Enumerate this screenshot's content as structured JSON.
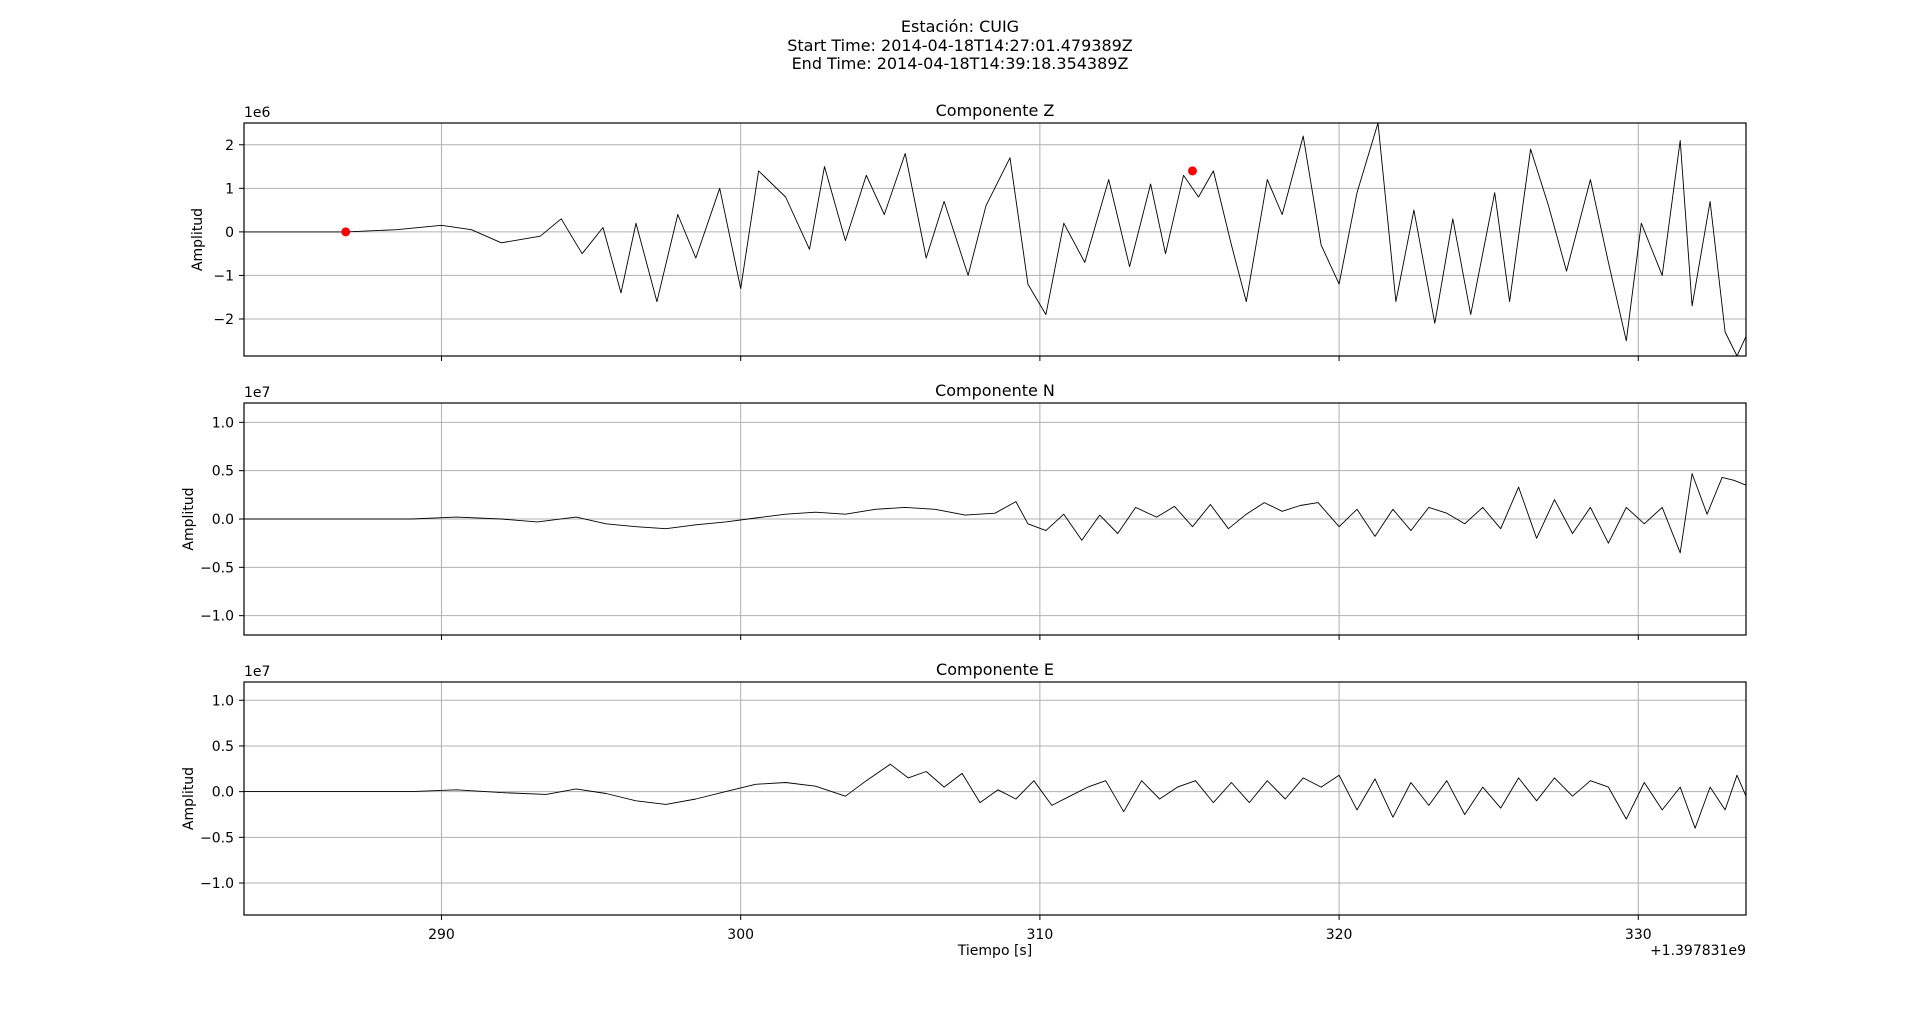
{
  "header": {
    "station": "Estación: CUIG",
    "start_time": "Start Time: 2014-04-18T14:27:01.479389Z",
    "end_time": "End Time: 2014-04-18T14:39:18.354389Z"
  },
  "colors": {
    "trace": "#000000",
    "grid": "#b0b0b0",
    "marker": "#ff0000"
  },
  "chart_data": [
    {
      "type": "line",
      "title": "Componente Z",
      "xlabel": "",
      "ylabel": "Amplitud",
      "scale_label": "1e6",
      "scale": 1000000,
      "xlim": [
        283.4,
        333.6
      ],
      "ylim": [
        -2.85,
        2.5
      ],
      "yticks": [
        2,
        1,
        0,
        -1,
        -2
      ],
      "ytick_labels": [
        "2",
        "1",
        "0",
        "−1",
        "−2"
      ],
      "xticks": [
        290,
        300,
        310,
        320,
        330
      ],
      "grid": true,
      "series": [
        {
          "name": "Z",
          "x": [
            283.4,
            286.8,
            288.5,
            290,
            291,
            292,
            293.3,
            294,
            294.7,
            295.4,
            296,
            296.5,
            297.2,
            297.9,
            298.5,
            299.3,
            300,
            300.6,
            301.5,
            302.3,
            302.8,
            303.5,
            304.2,
            304.8,
            305.5,
            306.2,
            306.8,
            307.6,
            308.2,
            309,
            309.6,
            310.2,
            310.8,
            311.5,
            312.3,
            313,
            313.7,
            314.2,
            314.8,
            315.3,
            315.8,
            316.4,
            316.9,
            317.6,
            318.1,
            318.8,
            319.4,
            320,
            320.6,
            321.3,
            321.9,
            322.5,
            323.2,
            323.8,
            324.4,
            325.2,
            325.7,
            326.4,
            327,
            327.6,
            328.4,
            329,
            329.6,
            330.1,
            330.8,
            331.4,
            331.8,
            332.4,
            332.9,
            333.3,
            333.6
          ],
          "values": [
            0,
            0,
            0.05,
            0.15,
            0.05,
            -0.25,
            -0.1,
            0.3,
            -0.5,
            0.1,
            -1.4,
            0.2,
            -1.6,
            0.4,
            -0.6,
            1,
            -1.3,
            1.4,
            0.8,
            -0.4,
            1.5,
            -0.2,
            1.3,
            0.4,
            1.8,
            -0.6,
            0.7,
            -1,
            0.6,
            1.7,
            -1.2,
            -1.9,
            0.2,
            -0.7,
            1.2,
            -0.8,
            1.1,
            -0.5,
            1.3,
            0.8,
            1.4,
            -0.3,
            -1.6,
            1.2,
            0.4,
            2.2,
            -0.3,
            -1.2,
            0.9,
            2.5,
            -1.6,
            0.5,
            -2.1,
            0.3,
            -1.9,
            0.9,
            -1.6,
            1.9,
            0.6,
            -0.9,
            1.2,
            -0.7,
            -2.5,
            0.2,
            -1,
            2.1,
            -1.7,
            0.7,
            -2.3,
            -2.85,
            -2.4
          ]
        }
      ],
      "markers": [
        {
          "x": 286.8,
          "y": 0
        },
        {
          "x": 315.1,
          "y": 1.4
        }
      ]
    },
    {
      "type": "line",
      "title": "Componente N",
      "xlabel": "",
      "ylabel": "Amplitud",
      "scale_label": "1e7",
      "scale": 10000000,
      "xlim": [
        283.4,
        333.6
      ],
      "ylim": [
        -1.2,
        1.2
      ],
      "yticks": [
        1.0,
        0.5,
        0.0,
        -0.5,
        -1.0
      ],
      "ytick_labels": [
        "1.0",
        "0.5",
        "0.0",
        "−0.5",
        "−1.0"
      ],
      "xticks": [
        290,
        300,
        310,
        320,
        330
      ],
      "grid": true,
      "series": [
        {
          "name": "N",
          "x": [
            283.4,
            289,
            290.5,
            292,
            293.2,
            294.5,
            295.5,
            296.5,
            297.5,
            298.5,
            299.5,
            300.5,
            301.5,
            302.5,
            303.5,
            304.5,
            305.5,
            306.5,
            307.5,
            308.5,
            309.2,
            309.6,
            310.2,
            310.8,
            311.4,
            312,
            312.6,
            313.2,
            313.9,
            314.5,
            315.1,
            315.7,
            316.3,
            316.9,
            317.5,
            318.1,
            318.7,
            319.3,
            320,
            320.6,
            321.2,
            321.8,
            322.4,
            323,
            323.6,
            324.2,
            324.8,
            325.4,
            326,
            326.6,
            327.2,
            327.8,
            328.4,
            329,
            329.6,
            330.2,
            330.8,
            331.4,
            331.8,
            332.3,
            332.8,
            333.2,
            333.6
          ],
          "values": [
            0,
            0,
            0.02,
            0,
            -0.03,
            0.02,
            -0.05,
            -0.08,
            -0.1,
            -0.06,
            -0.03,
            0.01,
            0.05,
            0.07,
            0.05,
            0.1,
            0.12,
            0.1,
            0.04,
            0.06,
            0.18,
            -0.05,
            -0.12,
            0.05,
            -0.22,
            0.04,
            -0.15,
            0.12,
            0.02,
            0.13,
            -0.08,
            0.15,
            -0.1,
            0.05,
            0.17,
            0.08,
            0.14,
            0.17,
            -0.08,
            0.1,
            -0.18,
            0.1,
            -0.12,
            0.12,
            0.06,
            -0.05,
            0.12,
            -0.1,
            0.33,
            -0.2,
            0.2,
            -0.15,
            0.12,
            -0.25,
            0.12,
            -0.05,
            0.12,
            -0.35,
            0.47,
            0.05,
            0.43,
            0.4,
            0.35
          ]
        }
      ],
      "markers": []
    },
    {
      "type": "line",
      "title": "Componente E",
      "xlabel": "Tiempo [s]",
      "ylabel": "Amplitud",
      "scale_label": "1e7",
      "offset_label": "+1.397831e9",
      "scale": 10000000,
      "xlim": [
        283.4,
        333.6
      ],
      "ylim": [
        -1.35,
        1.2
      ],
      "yticks": [
        1.0,
        0.5,
        0.0,
        -0.5,
        -1.0
      ],
      "ytick_labels": [
        "1.0",
        "0.5",
        "0.0",
        "−0.5",
        "−1.0"
      ],
      "xticks": [
        290,
        300,
        310,
        320,
        330
      ],
      "xtick_labels": [
        "290",
        "300",
        "310",
        "320",
        "330"
      ],
      "grid": true,
      "series": [
        {
          "name": "E",
          "x": [
            283.4,
            289,
            290.5,
            292,
            293.5,
            294.5,
            295.5,
            296.5,
            297.5,
            298.5,
            299.5,
            300.5,
            301.5,
            302.5,
            303.5,
            304.2,
            305,
            305.6,
            306.2,
            306.8,
            307.4,
            308,
            308.6,
            309.2,
            309.8,
            310.4,
            311,
            311.6,
            312.2,
            312.8,
            313.4,
            314,
            314.6,
            315.2,
            315.8,
            316.4,
            317,
            317.6,
            318.2,
            318.8,
            319.4,
            320,
            320.6,
            321.2,
            321.8,
            322.4,
            323,
            323.6,
            324.2,
            324.8,
            325.4,
            326,
            326.6,
            327.2,
            327.8,
            328.4,
            329,
            329.6,
            330.2,
            330.8,
            331.4,
            331.9,
            332.4,
            332.9,
            333.3,
            333.6
          ],
          "values": [
            0,
            0,
            0.02,
            -0.01,
            -0.03,
            0.03,
            -0.02,
            -0.1,
            -0.14,
            -0.08,
            0,
            0.08,
            0.1,
            0.06,
            -0.05,
            0.12,
            0.3,
            0.15,
            0.22,
            0.05,
            0.2,
            -0.12,
            0.02,
            -0.08,
            0.12,
            -0.15,
            -0.05,
            0.05,
            0.12,
            -0.22,
            0.12,
            -0.08,
            0.05,
            0.12,
            -0.12,
            0.1,
            -0.12,
            0.12,
            -0.08,
            0.15,
            0.05,
            0.18,
            -0.2,
            0.14,
            -0.28,
            0.1,
            -0.15,
            0.12,
            -0.25,
            0.05,
            -0.18,
            0.15,
            -0.1,
            0.15,
            -0.05,
            0.12,
            0.05,
            -0.3,
            0.1,
            -0.2,
            0.05,
            -0.4,
            0.05,
            -0.2,
            0.18,
            -0.05
          ]
        }
      ],
      "markers": []
    }
  ]
}
